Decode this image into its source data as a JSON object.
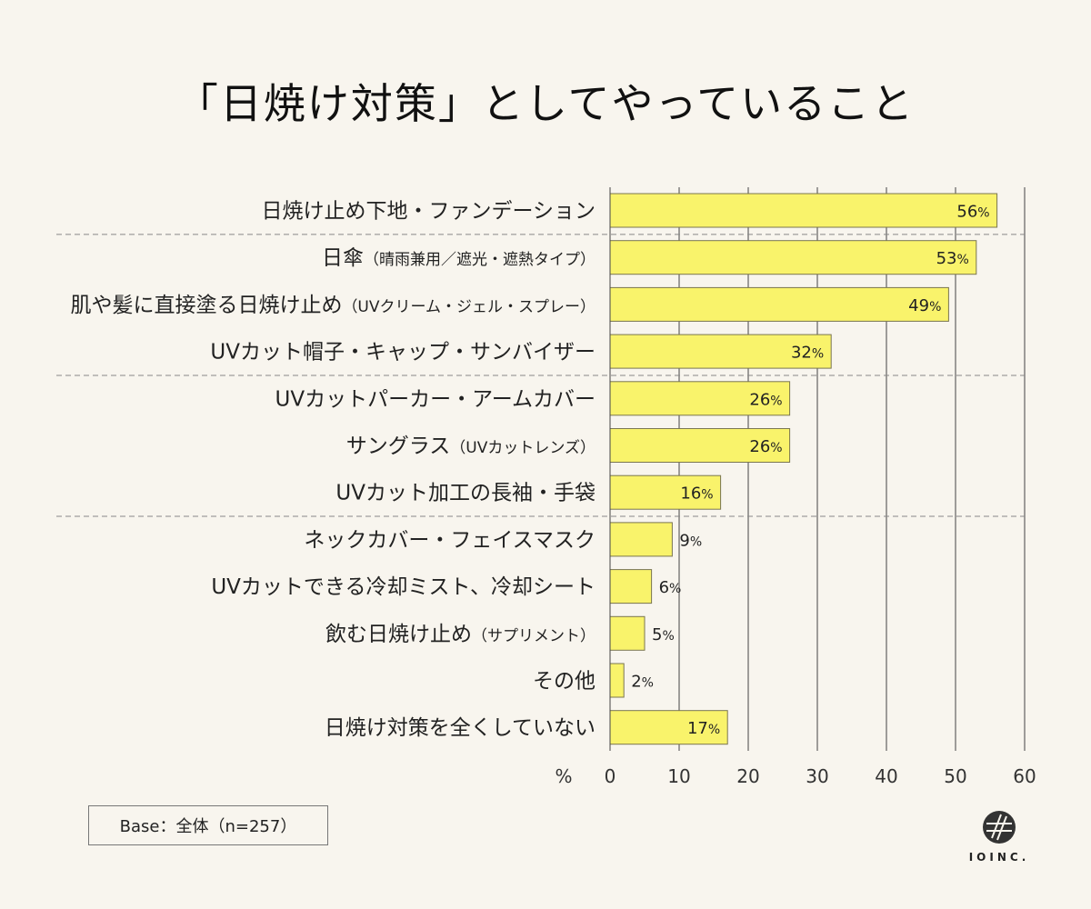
{
  "title": "「日焼け対策」としてやっていること",
  "base_note": "Base：全体（n=257）",
  "logo_text": "IOINC.",
  "colors": {
    "bar": "#f9f36b",
    "bar_stroke": "#7a7650",
    "background": "#f8f5ee",
    "grid": "#444444"
  },
  "chart_data": {
    "type": "bar",
    "orientation": "horizontal",
    "categories": [
      {
        "main": "日焼け止め下地・ファンデーション",
        "sub": ""
      },
      {
        "main": "日傘",
        "sub": "（晴雨兼用／遮光・遮熱タイプ）"
      },
      {
        "main": "肌や髪に直接塗る日焼け止め",
        "sub": "（UVクリーム・ジェル・スプレー）"
      },
      {
        "main": "UVカット帽子・キャップ・サンバイザー",
        "sub": ""
      },
      {
        "main": "UVカットパーカー・アームカバー",
        "sub": ""
      },
      {
        "main": "サングラス",
        "sub": "（UVカットレンズ）"
      },
      {
        "main": "UVカット加工の長袖・手袋",
        "sub": ""
      },
      {
        "main": "ネックカバー・フェイスマスク",
        "sub": ""
      },
      {
        "main": "UVカットできる冷却ミスト、冷却シート",
        "sub": ""
      },
      {
        "main": "飲む日焼け止め",
        "sub": "（サプリメント）"
      },
      {
        "main": "その他",
        "sub": ""
      },
      {
        "main": "日焼け対策を全くしていない",
        "sub": ""
      }
    ],
    "values": [
      56,
      53,
      49,
      32,
      26,
      26,
      16,
      9,
      6,
      5,
      2,
      17
    ],
    "value_suffix": "%",
    "xlim": [
      0,
      60
    ],
    "ticks": [
      0,
      10,
      20,
      30,
      40,
      50,
      60
    ],
    "axis_unit_label": "%",
    "grid": true,
    "group_separators_after": [
      0,
      3,
      6
    ]
  }
}
